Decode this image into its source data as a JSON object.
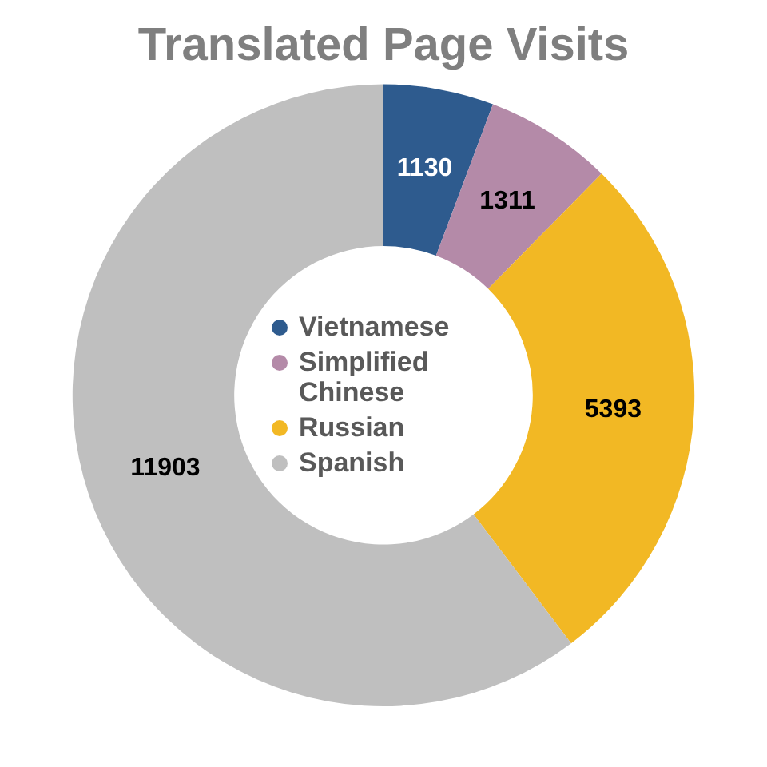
{
  "chart_data": {
    "type": "donut",
    "title": "Translated Page Visits",
    "categories": [
      "Vietnamese",
      "Simplified Chinese",
      "Russian",
      "Spanish"
    ],
    "values": [
      1130,
      1311,
      5393,
      11903
    ],
    "colors": [
      "#2e5b8e",
      "#b48aa8",
      "#f2b824",
      "#bfbfbf"
    ],
    "data_labels": true,
    "legend": "center"
  }
}
